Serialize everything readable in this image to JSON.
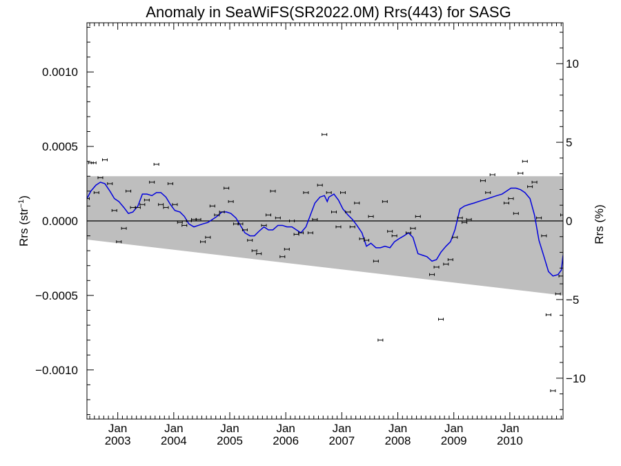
{
  "chart_data": {
    "type": "scatter",
    "title": "Anomaly in SeaWiFS(SR2022.0M) Rrs(443) for SASG",
    "ylabel_left_base": "Rrs (str",
    "ylabel_left_sup": "−1",
    "ylabel_left_end": ")",
    "ylabel_right": "Rrs (%)",
    "xlim": [
      2002.45,
      2010.95
    ],
    "ylim": [
      -0.00133,
      0.00133
    ],
    "ylim_right": [
      -12.6,
      12.6
    ],
    "x_major_ticks": [
      {
        "x": 2003.0,
        "top": "Jan",
        "bottom": "2003"
      },
      {
        "x": 2004.0,
        "top": "Jan",
        "bottom": "2004"
      },
      {
        "x": 2005.0,
        "top": "Jan",
        "bottom": "2005"
      },
      {
        "x": 2006.0,
        "top": "Jan",
        "bottom": "2006"
      },
      {
        "x": 2007.0,
        "top": "Jan",
        "bottom": "2007"
      },
      {
        "x": 2008.0,
        "top": "Jan",
        "bottom": "2008"
      },
      {
        "x": 2009.0,
        "top": "Jan",
        "bottom": "2009"
      },
      {
        "x": 2010.0,
        "top": "Jan",
        "bottom": "2010"
      }
    ],
    "y_ticks_left": [
      {
        "value": 0.001,
        "label": "0.0010"
      },
      {
        "value": 0.0005,
        "label": "0.0005"
      },
      {
        "value": 0.0,
        "label": "0.0000"
      },
      {
        "value": -0.0005,
        "label": "−0.0005"
      },
      {
        "value": -0.001,
        "label": "−0.0010"
      }
    ],
    "y_ticks_right": [
      {
        "value": 10,
        "label": "10"
      },
      {
        "value": 5,
        "label": "5"
      },
      {
        "value": 0,
        "label": "0"
      },
      {
        "value": -5,
        "label": "−5"
      },
      {
        "value": -10,
        "label": "−10"
      }
    ],
    "band": {
      "upper": [
        [
          2002.45,
          0.0003
        ],
        [
          2010.95,
          0.0003
        ]
      ],
      "lower": [
        [
          2002.45,
          -0.000125
        ],
        [
          2010.95,
          -0.0005
        ]
      ]
    },
    "zero_line": 0.0,
    "points": [
      [
        2002.45,
        0.00015
      ],
      [
        2002.52,
        0.00039
      ],
      [
        2002.57,
        0.00039
      ],
      [
        2002.62,
        0.00019
      ],
      [
        2002.69,
        0.00029
      ],
      [
        2002.77,
        0.00041
      ],
      [
        2002.86,
        0.00025
      ],
      [
        2002.94,
        7e-05
      ],
      [
        2003.02,
        -0.00014
      ],
      [
        2003.11,
        -5e-05
      ],
      [
        2003.19,
        0.0002
      ],
      [
        2003.27,
        9e-05
      ],
      [
        2003.36,
        9e-05
      ],
      [
        2003.44,
        0.00011
      ],
      [
        2003.52,
        0.00014
      ],
      [
        2003.61,
        0.00026
      ],
      [
        2003.69,
        0.00038
      ],
      [
        2003.77,
        0.00011
      ],
      [
        2003.86,
        9e-05
      ],
      [
        2003.94,
        0.00025
      ],
      [
        2004.02,
        0.00011
      ],
      [
        2004.11,
        -1e-05
      ],
      [
        2004.19,
        -3e-05
      ],
      [
        2004.27,
        0.0
      ],
      [
        2004.36,
        1e-05
      ],
      [
        2004.44,
        1e-05
      ],
      [
        2004.52,
        -0.00014
      ],
      [
        2004.61,
        -0.00011
      ],
      [
        2004.69,
        0.0001
      ],
      [
        2004.77,
        4e-05
      ],
      [
        2004.86,
        6e-05
      ],
      [
        2004.94,
        0.00022
      ],
      [
        2005.02,
        0.00013
      ],
      [
        2005.11,
        -2e-05
      ],
      [
        2005.19,
        -2e-05
      ],
      [
        2005.27,
        -6e-05
      ],
      [
        2005.36,
        -0.00013
      ],
      [
        2005.44,
        -0.0002
      ],
      [
        2005.52,
        -0.00022
      ],
      [
        2005.61,
        -3e-05
      ],
      [
        2005.69,
        4e-05
      ],
      [
        2005.77,
        0.0002
      ],
      [
        2005.86,
        2e-05
      ],
      [
        2005.94,
        -0.00024
      ],
      [
        2006.02,
        -0.00019
      ],
      [
        2006.11,
        0.0
      ],
      [
        2006.19,
        -9e-05
      ],
      [
        2006.27,
        -8e-05
      ],
      [
        2006.36,
        0.00019
      ],
      [
        2006.44,
        -8e-05
      ],
      [
        2006.52,
        1e-05
      ],
      [
        2006.61,
        0.00024
      ],
      [
        2006.69,
        0.00058
      ],
      [
        2006.77,
        0.00019
      ],
      [
        2006.86,
        6e-05
      ],
      [
        2006.94,
        -4e-05
      ],
      [
        2007.02,
        0.00019
      ],
      [
        2007.11,
        6e-05
      ],
      [
        2007.19,
        -4e-05
      ],
      [
        2007.27,
        0.00012
      ],
      [
        2007.36,
        -0.00012
      ],
      [
        2007.44,
        -0.00013
      ],
      [
        2007.52,
        3e-05
      ],
      [
        2007.61,
        -0.00027
      ],
      [
        2007.69,
        -0.0008
      ],
      [
        2007.77,
        0.00013
      ],
      [
        2007.86,
        -7e-05
      ],
      [
        2007.94,
        -0.0001
      ],
      [
        2008.19,
        -8e-05
      ],
      [
        2008.27,
        -5e-05
      ],
      [
        2008.36,
        3e-05
      ],
      [
        2008.61,
        -0.00036
      ],
      [
        2008.69,
        -0.00031
      ],
      [
        2008.77,
        -0.00066
      ],
      [
        2008.86,
        -0.00029
      ],
      [
        2008.94,
        -0.00026
      ],
      [
        2009.02,
        -0.00011
      ],
      [
        2009.11,
        2e-05
      ],
      [
        2009.19,
        -1e-05
      ],
      [
        2009.27,
        1e-05
      ],
      [
        2009.52,
        0.00027
      ],
      [
        2009.61,
        0.00019
      ],
      [
        2009.69,
        0.00031
      ],
      [
        2009.94,
        0.00012
      ],
      [
        2010.02,
        0.00015
      ],
      [
        2010.11,
        5e-05
      ],
      [
        2010.19,
        0.00032
      ],
      [
        2010.27,
        0.0004
      ],
      [
        2010.36,
        0.00023
      ],
      [
        2010.44,
        0.00026
      ],
      [
        2010.52,
        2e-05
      ],
      [
        2010.61,
        -0.0001
      ],
      [
        2010.69,
        -0.00063
      ],
      [
        2010.77,
        -0.00114
      ],
      [
        2010.86,
        -0.00049
      ],
      [
        2010.92,
        -0.00037
      ],
      [
        2010.95,
        4e-05
      ]
    ],
    "smooth_line": [
      [
        2002.45,
        0.00015
      ],
      [
        2002.52,
        0.0002
      ],
      [
        2002.61,
        0.00024
      ],
      [
        2002.69,
        0.00026
      ],
      [
        2002.77,
        0.00025
      ],
      [
        2002.86,
        0.0002
      ],
      [
        2002.94,
        0.00015
      ],
      [
        2003.02,
        0.00013
      ],
      [
        2003.11,
        9e-05
      ],
      [
        2003.19,
        5e-05
      ],
      [
        2003.27,
        6e-05
      ],
      [
        2003.36,
        0.0001
      ],
      [
        2003.44,
        0.00018
      ],
      [
        2003.52,
        0.00018
      ],
      [
        2003.61,
        0.00017
      ],
      [
        2003.69,
        0.00019
      ],
      [
        2003.77,
        0.00019
      ],
      [
        2003.86,
        0.00016
      ],
      [
        2003.94,
        0.00011
      ],
      [
        2004.02,
        7e-05
      ],
      [
        2004.11,
        6e-05
      ],
      [
        2004.19,
        3e-05
      ],
      [
        2004.27,
        -2e-05
      ],
      [
        2004.36,
        -4e-05
      ],
      [
        2004.44,
        -3e-05
      ],
      [
        2004.52,
        -2e-05
      ],
      [
        2004.61,
        -1e-05
      ],
      [
        2004.69,
        1e-05
      ],
      [
        2004.77,
        3e-05
      ],
      [
        2004.86,
        6e-05
      ],
      [
        2004.94,
        6e-05
      ],
      [
        2005.02,
        5e-05
      ],
      [
        2005.11,
        2e-05
      ],
      [
        2005.19,
        -3e-05
      ],
      [
        2005.27,
        -8e-05
      ],
      [
        2005.36,
        -0.0001
      ],
      [
        2005.44,
        -0.0001
      ],
      [
        2005.52,
        -7e-05
      ],
      [
        2005.61,
        -4e-05
      ],
      [
        2005.69,
        -6e-05
      ],
      [
        2005.77,
        -6e-05
      ],
      [
        2005.86,
        -3e-05
      ],
      [
        2005.94,
        -3e-05
      ],
      [
        2006.02,
        -4e-05
      ],
      [
        2006.11,
        -4e-05
      ],
      [
        2006.19,
        -6e-05
      ],
      [
        2006.27,
        -8e-05
      ],
      [
        2006.36,
        -4e-05
      ],
      [
        2006.44,
        4e-05
      ],
      [
        2006.52,
        0.00012
      ],
      [
        2006.61,
        0.00016
      ],
      [
        2006.69,
        0.00017
      ],
      [
        2006.74,
        0.00013
      ],
      [
        2006.77,
        0.00016
      ],
      [
        2006.86,
        0.00018
      ],
      [
        2006.94,
        0.00014
      ],
      [
        2007.02,
        8e-05
      ],
      [
        2007.11,
        4e-05
      ],
      [
        2007.19,
        1e-05
      ],
      [
        2007.27,
        -3e-05
      ],
      [
        2007.36,
        -8e-05
      ],
      [
        2007.44,
        -0.00017
      ],
      [
        2007.52,
        -0.00015
      ],
      [
        2007.61,
        -0.00018
      ],
      [
        2007.69,
        -0.00018
      ],
      [
        2007.77,
        -0.00017
      ],
      [
        2007.86,
        -0.00018
      ],
      [
        2007.94,
        -0.00014
      ],
      [
        2008.02,
        -0.00012
      ],
      [
        2008.11,
        -0.0001
      ],
      [
        2008.19,
        -8e-05
      ],
      [
        2008.27,
        -0.00011
      ],
      [
        2008.36,
        -0.00022
      ],
      [
        2008.44,
        -0.00023
      ],
      [
        2008.52,
        -0.00024
      ],
      [
        2008.61,
        -0.00027
      ],
      [
        2008.69,
        -0.00026
      ],
      [
        2008.77,
        -0.00021
      ],
      [
        2008.86,
        -0.00017
      ],
      [
        2008.94,
        -0.00014
      ],
      [
        2009.02,
        -6e-05
      ],
      [
        2009.11,
        8e-05
      ],
      [
        2009.19,
        0.0001
      ],
      [
        2009.27,
        0.00011
      ],
      [
        2009.36,
        0.00012
      ],
      [
        2009.44,
        0.00013
      ],
      [
        2009.52,
        0.00014
      ],
      [
        2009.61,
        0.00015
      ],
      [
        2009.69,
        0.00016
      ],
      [
        2009.77,
        0.00017
      ],
      [
        2009.86,
        0.00018
      ],
      [
        2009.94,
        0.0002
      ],
      [
        2010.02,
        0.00022
      ],
      [
        2010.11,
        0.00022
      ],
      [
        2010.19,
        0.00021
      ],
      [
        2010.27,
        0.00019
      ],
      [
        2010.36,
        0.00015
      ],
      [
        2010.44,
        4e-05
      ],
      [
        2010.52,
        -0.00013
      ],
      [
        2010.61,
        -0.00024
      ],
      [
        2010.69,
        -0.00034
      ],
      [
        2010.77,
        -0.00037
      ],
      [
        2010.86,
        -0.00036
      ],
      [
        2010.92,
        -0.00033
      ],
      [
        2010.95,
        -0.00023
      ]
    ],
    "colors": {
      "band": "#bebebe",
      "smooth_line": "#0000dd",
      "points": "#000000",
      "axes": "#000000"
    }
  }
}
